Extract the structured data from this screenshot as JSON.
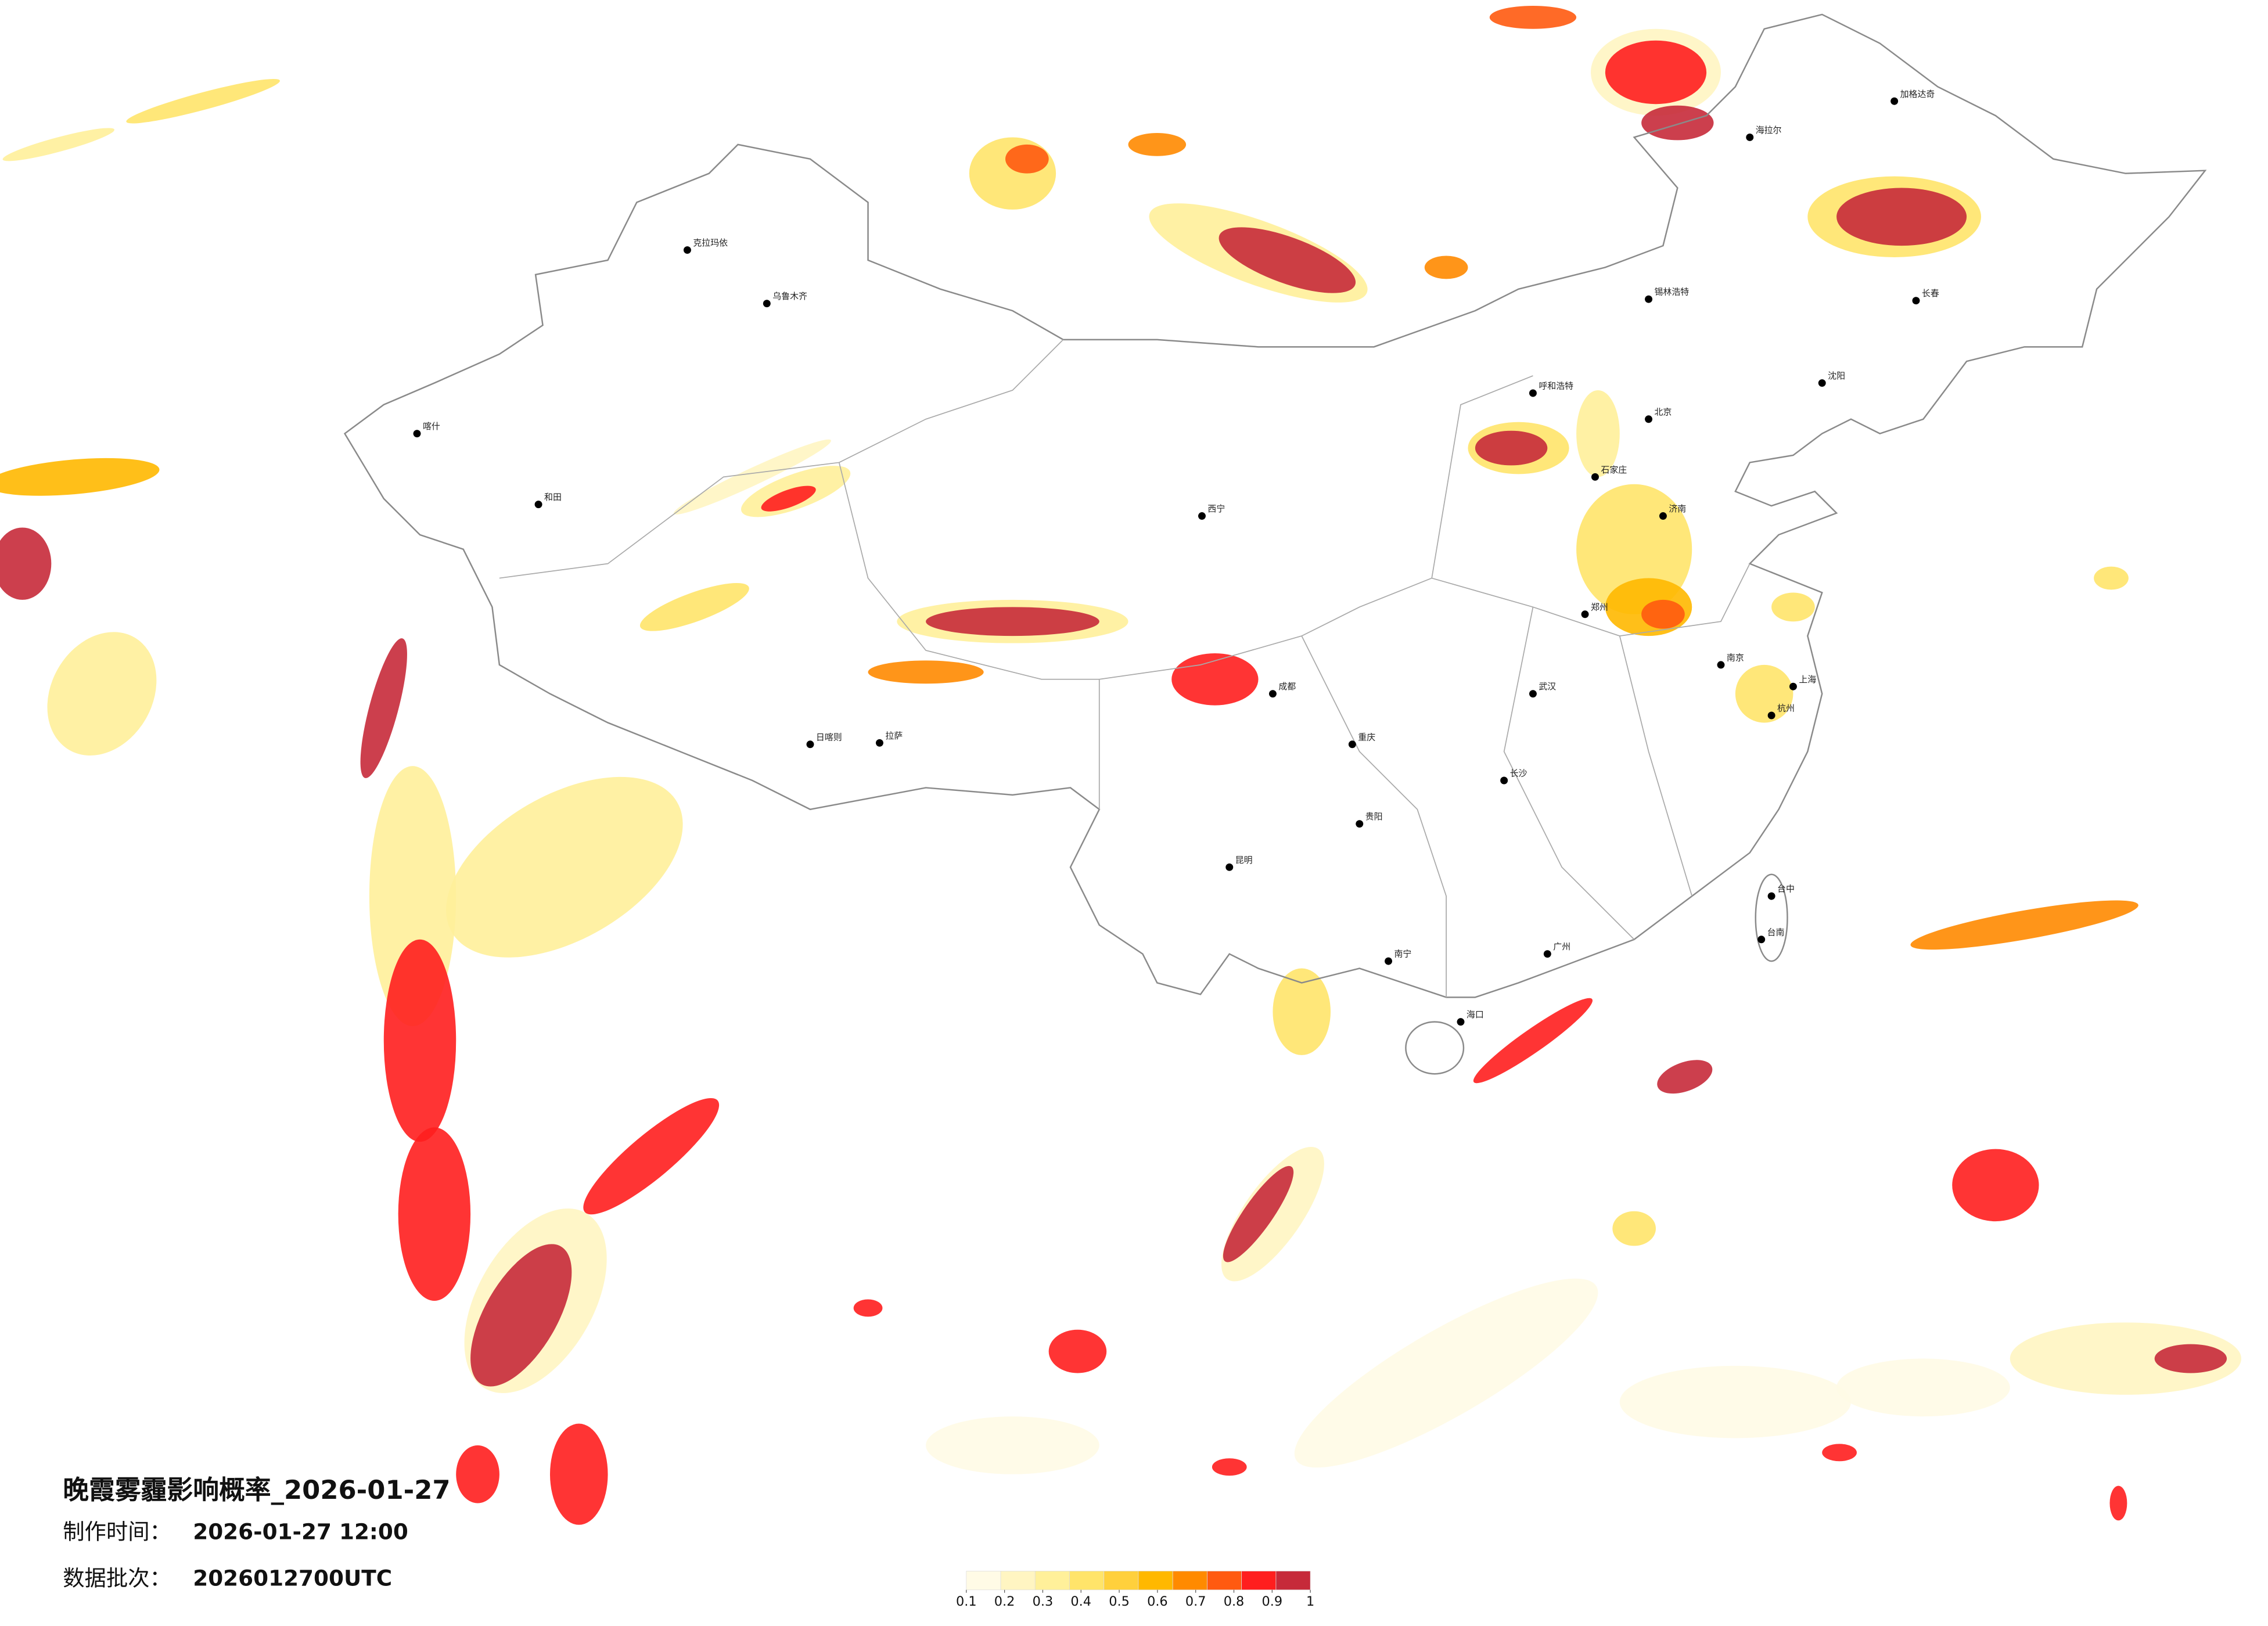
{
  "title": "晚霞雾霾影响概率_2026-01-27",
  "info": [
    {
      "label": "制作时间：",
      "value": "2026-01-27 12:00"
    },
    {
      "label": "数据批次：",
      "value": "2026012700UTC"
    }
  ],
  "colorbar": {
    "ticks": [
      0.1,
      0.2,
      0.3,
      0.4,
      0.5,
      0.6,
      0.7,
      0.8,
      0.9,
      1
    ],
    "colors": [
      "#fffbe6",
      "#fff5c2",
      "#fff09a",
      "#ffe46a",
      "#ffd03c",
      "#ffb800",
      "#ff8a00",
      "#ff5a10",
      "#ff1e1e",
      "#c62a3a"
    ]
  },
  "cities": [
    "乌鲁木齐",
    "克拉玛依",
    "喀什",
    "和田",
    "拉萨",
    "日喀则",
    "西宁",
    "呼和浩特",
    "锡林浩特",
    "北京",
    "石家庄",
    "济南",
    "郑州",
    "南京",
    "上海",
    "杭州",
    "武汉",
    "长沙",
    "广州",
    "重庆",
    "成都",
    "贵阳",
    "昆明",
    "南宁",
    "海口",
    "沈阳",
    "长春",
    "海拉尔",
    "加格达奇",
    "台中",
    "台南"
  ]
}
